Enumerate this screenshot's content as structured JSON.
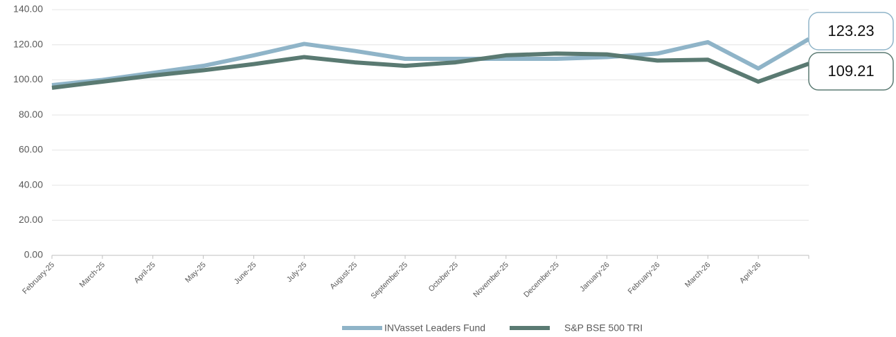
{
  "chart_data": {
    "type": "line",
    "categories": [
      "February-25",
      "March-25",
      "April-25",
      "May-25",
      "June-25",
      "July-25",
      "August-25",
      "September-25",
      "October-25",
      "November-25",
      "December-25",
      "January-26",
      "February-26",
      "March-26",
      "April-26",
      null
    ],
    "series": [
      {
        "name": "INVasset Leaders Fund",
        "color": "#8fb4c8",
        "values": [
          97,
          100,
          104,
          108,
          114,
          120.5,
          116.5,
          112,
          112,
          112,
          112,
          113,
          115,
          121.5,
          106.5,
          123.23
        ]
      },
      {
        "name": "S&P BSE 500 TRI",
        "color": "#5a7a72",
        "values": [
          95.5,
          99,
          102.5,
          105.5,
          109,
          113,
          110,
          108,
          110,
          114,
          115,
          114.5,
          111,
          111.5,
          99,
          109.21
        ]
      }
    ],
    "ylim": [
      0,
      140
    ],
    "yticks": [
      {
        "value": 0,
        "label": "0.00"
      },
      {
        "value": 20,
        "label": "20.00"
      },
      {
        "value": 40,
        "label": "40.00"
      },
      {
        "value": 60,
        "label": "60.00"
      },
      {
        "value": 80,
        "label": "80.00"
      },
      {
        "value": 100,
        "label": "100.00"
      },
      {
        "value": 120,
        "label": "120.00"
      },
      {
        "value": 140,
        "label": "140.00"
      }
    ],
    "grid": true,
    "legend": "bottom"
  }
}
